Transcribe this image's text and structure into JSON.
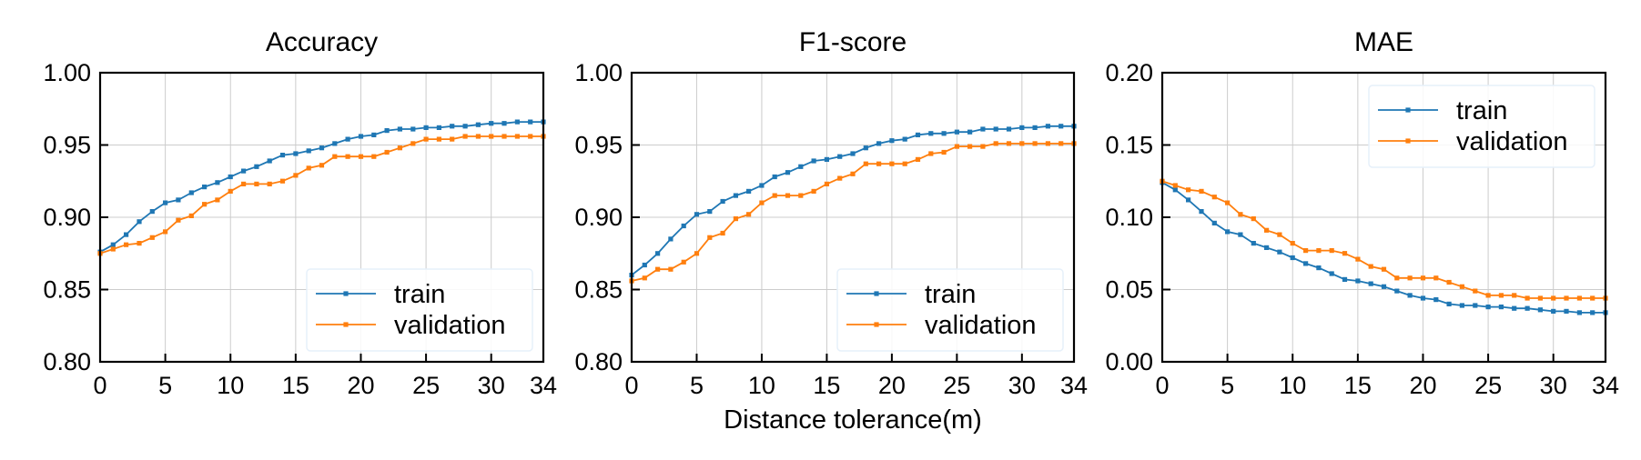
{
  "chart_data": [
    {
      "type": "line",
      "title": "Accuracy",
      "xlabel": "",
      "ylabel": "",
      "xlim": [
        0,
        34
      ],
      "ylim": [
        0.8,
        1.0
      ],
      "xticks": [
        0,
        5,
        10,
        15,
        20,
        25,
        30,
        34
      ],
      "yticks": [
        "0.80",
        "0.85",
        "0.90",
        "0.95",
        "1.00"
      ],
      "grid": true,
      "legend": "lower-right",
      "x": [
        0,
        1,
        2,
        3,
        4,
        5,
        6,
        7,
        8,
        9,
        10,
        11,
        12,
        13,
        14,
        15,
        16,
        17,
        18,
        19,
        20,
        21,
        22,
        23,
        24,
        25,
        26,
        27,
        28,
        29,
        30,
        31,
        32,
        33,
        34
      ],
      "series": [
        {
          "name": "train",
          "color": "#1f77b4",
          "values": [
            0.876,
            0.881,
            0.888,
            0.897,
            0.904,
            0.91,
            0.912,
            0.917,
            0.921,
            0.924,
            0.928,
            0.932,
            0.935,
            0.939,
            0.943,
            0.944,
            0.946,
            0.948,
            0.951,
            0.954,
            0.956,
            0.957,
            0.96,
            0.961,
            0.961,
            0.962,
            0.962,
            0.963,
            0.963,
            0.964,
            0.965,
            0.965,
            0.966,
            0.966,
            0.966
          ]
        },
        {
          "name": "validation",
          "color": "#ff7f0e",
          "values": [
            0.875,
            0.878,
            0.881,
            0.882,
            0.886,
            0.89,
            0.898,
            0.901,
            0.909,
            0.912,
            0.918,
            0.923,
            0.923,
            0.923,
            0.925,
            0.929,
            0.934,
            0.936,
            0.942,
            0.942,
            0.942,
            0.942,
            0.945,
            0.948,
            0.951,
            0.954,
            0.954,
            0.954,
            0.956,
            0.956,
            0.956,
            0.956,
            0.956,
            0.956,
            0.956
          ]
        }
      ]
    },
    {
      "type": "line",
      "title": "F1-score",
      "xlabel": "Distance tolerance(m)",
      "ylabel": "",
      "xlim": [
        0,
        34
      ],
      "ylim": [
        0.8,
        1.0
      ],
      "xticks": [
        0,
        5,
        10,
        15,
        20,
        25,
        30,
        34
      ],
      "yticks": [
        "0.80",
        "0.85",
        "0.90",
        "0.95",
        "1.00"
      ],
      "grid": true,
      "legend": "lower-right",
      "x": [
        0,
        1,
        2,
        3,
        4,
        5,
        6,
        7,
        8,
        9,
        10,
        11,
        12,
        13,
        14,
        15,
        16,
        17,
        18,
        19,
        20,
        21,
        22,
        23,
        24,
        25,
        26,
        27,
        28,
        29,
        30,
        31,
        32,
        33,
        34
      ],
      "series": [
        {
          "name": "train",
          "color": "#1f77b4",
          "values": [
            0.86,
            0.867,
            0.875,
            0.885,
            0.894,
            0.902,
            0.904,
            0.911,
            0.915,
            0.918,
            0.922,
            0.928,
            0.931,
            0.935,
            0.939,
            0.94,
            0.942,
            0.944,
            0.948,
            0.951,
            0.953,
            0.954,
            0.957,
            0.958,
            0.958,
            0.959,
            0.959,
            0.961,
            0.961,
            0.961,
            0.962,
            0.962,
            0.963,
            0.963,
            0.963
          ]
        },
        {
          "name": "validation",
          "color": "#ff7f0e",
          "values": [
            0.856,
            0.858,
            0.864,
            0.864,
            0.869,
            0.875,
            0.886,
            0.889,
            0.899,
            0.902,
            0.91,
            0.915,
            0.915,
            0.915,
            0.918,
            0.923,
            0.927,
            0.93,
            0.937,
            0.937,
            0.937,
            0.937,
            0.94,
            0.944,
            0.945,
            0.949,
            0.949,
            0.949,
            0.951,
            0.951,
            0.951,
            0.951,
            0.951,
            0.951,
            0.951
          ]
        }
      ]
    },
    {
      "type": "line",
      "title": "MAE",
      "xlabel": "",
      "ylabel": "",
      "xlim": [
        0,
        34
      ],
      "ylim": [
        0.0,
        0.2
      ],
      "xticks": [
        0,
        5,
        10,
        15,
        20,
        25,
        30,
        34
      ],
      "yticks": [
        "0.00",
        "0.05",
        "0.10",
        "0.15",
        "0.20"
      ],
      "grid": true,
      "legend": "upper-right",
      "x": [
        0,
        1,
        2,
        3,
        4,
        5,
        6,
        7,
        8,
        9,
        10,
        11,
        12,
        13,
        14,
        15,
        16,
        17,
        18,
        19,
        20,
        21,
        22,
        23,
        24,
        25,
        26,
        27,
        28,
        29,
        30,
        31,
        32,
        33,
        34
      ],
      "series": [
        {
          "name": "train",
          "color": "#1f77b4",
          "values": [
            0.124,
            0.119,
            0.112,
            0.104,
            0.096,
            0.09,
            0.088,
            0.082,
            0.079,
            0.076,
            0.072,
            0.068,
            0.065,
            0.061,
            0.057,
            0.056,
            0.054,
            0.052,
            0.049,
            0.046,
            0.044,
            0.043,
            0.04,
            0.039,
            0.039,
            0.038,
            0.038,
            0.037,
            0.037,
            0.036,
            0.035,
            0.035,
            0.034,
            0.034,
            0.034
          ]
        },
        {
          "name": "validation",
          "color": "#ff7f0e",
          "values": [
            0.125,
            0.122,
            0.119,
            0.118,
            0.114,
            0.11,
            0.102,
            0.099,
            0.091,
            0.088,
            0.082,
            0.077,
            0.077,
            0.077,
            0.075,
            0.071,
            0.066,
            0.064,
            0.058,
            0.058,
            0.058,
            0.058,
            0.055,
            0.052,
            0.049,
            0.046,
            0.046,
            0.046,
            0.044,
            0.044,
            0.044,
            0.044,
            0.044,
            0.044,
            0.044
          ]
        }
      ]
    }
  ]
}
